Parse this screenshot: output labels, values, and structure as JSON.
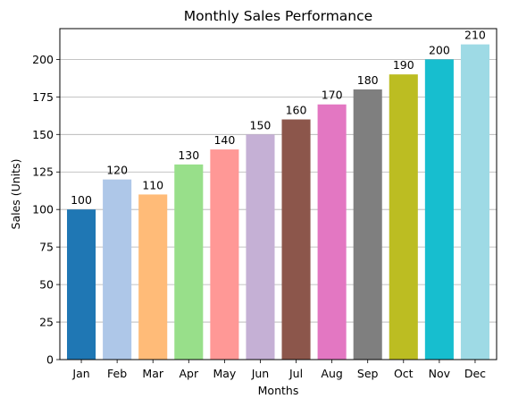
{
  "chart_data": {
    "type": "bar",
    "title": "Monthly Sales Performance",
    "xlabel": "Months",
    "ylabel": "Sales (Units)",
    "categories": [
      "Jan",
      "Feb",
      "Mar",
      "Apr",
      "May",
      "Jun",
      "Jul",
      "Aug",
      "Sep",
      "Oct",
      "Nov",
      "Dec"
    ],
    "values": [
      100,
      120,
      110,
      130,
      140,
      150,
      160,
      170,
      180,
      190,
      200,
      210
    ],
    "colors": [
      "#1f77b4",
      "#aec7e8",
      "#ffbb78",
      "#98df8a",
      "#ff9896",
      "#c5b0d5",
      "#8c564b",
      "#e377c2",
      "#7f7f7f",
      "#bcbd22",
      "#17becf",
      "#9edae5"
    ],
    "ylim": [
      0,
      220.5
    ],
    "yticks": [
      0,
      25,
      50,
      75,
      100,
      125,
      150,
      175,
      200
    ],
    "grid": "y-major",
    "data_labels": true,
    "legend": "none"
  }
}
